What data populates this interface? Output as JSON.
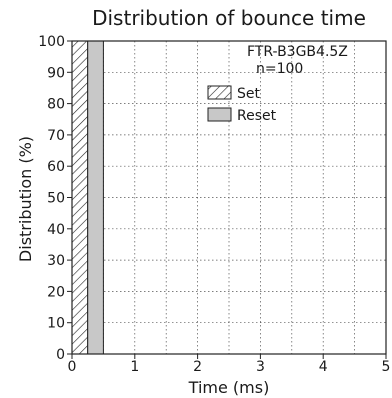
{
  "chart_data": {
    "type": "bar",
    "title": "Distribution of bounce time",
    "xlabel": "Time (ms)",
    "ylabel": "Distribution (%)",
    "xlim": [
      0,
      5
    ],
    "ylim": [
      0,
      100
    ],
    "x_ticks": [
      "0",
      "1",
      "2",
      "3",
      "4",
      "5"
    ],
    "y_ticks": [
      "0",
      "10",
      "20",
      "30",
      "40",
      "50",
      "60",
      "70",
      "80",
      "90",
      "100"
    ],
    "grid": true,
    "annotation": [
      "FTR-B3GB4.5Z",
      "n=100"
    ],
    "legend_position": "top-right",
    "series": [
      {
        "name": "Set",
        "pattern": "hatched",
        "color": "#ffffff",
        "bins": [
          {
            "x_start": 0,
            "x_end": 0.25,
            "value": 100
          }
        ]
      },
      {
        "name": "Reset",
        "pattern": "solid",
        "color": "#c8c8c8",
        "bins": [
          {
            "x_start": 0.25,
            "x_end": 0.5,
            "value": 100
          }
        ]
      }
    ]
  }
}
